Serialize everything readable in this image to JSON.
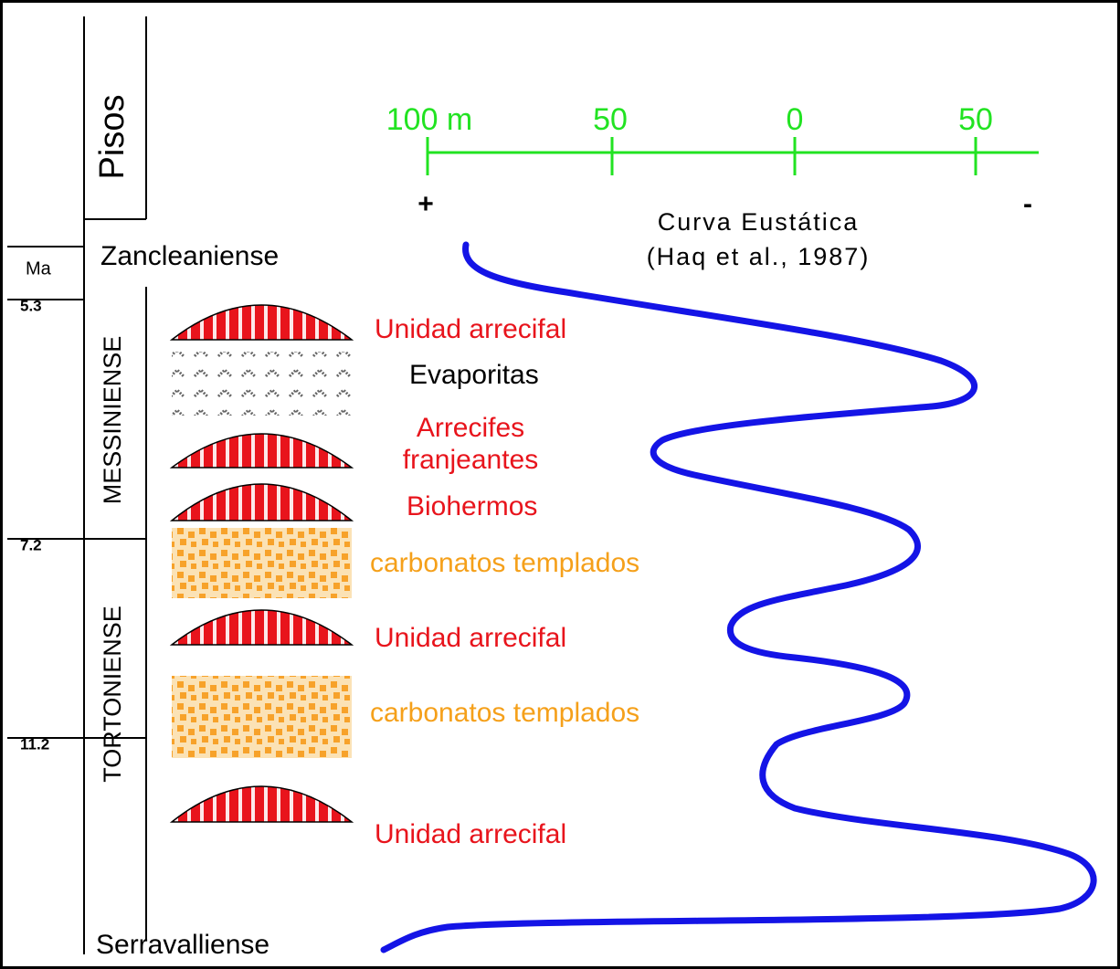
{
  "header": {
    "column_title": "Pisos",
    "age_unit": "Ma"
  },
  "ages": [
    5.3,
    7.2,
    11.2
  ],
  "stages": {
    "top": "Zancleaniense",
    "upper": "MESSINIENSE",
    "lower": "TORTONIENSE",
    "bottom": "Serravalliense"
  },
  "scale": {
    "ticks": [
      "100 m",
      "50",
      "0",
      "50"
    ],
    "plus": "+",
    "minus": "-",
    "title": "Curva Eustática",
    "source": "(Haq et al., 1987)"
  },
  "units": [
    {
      "label": "Unidad arrecifal"
    },
    {
      "label": "Evaporitas"
    },
    {
      "label": [
        "Arrecifes",
        "franjeantes"
      ]
    },
    {
      "label": "Biohermos"
    },
    {
      "label": "carbonatos templados"
    },
    {
      "label": "Unidad arrecifal"
    },
    {
      "label": "carbonatos templados"
    },
    {
      "label": "Unidad arrecifal"
    }
  ]
}
